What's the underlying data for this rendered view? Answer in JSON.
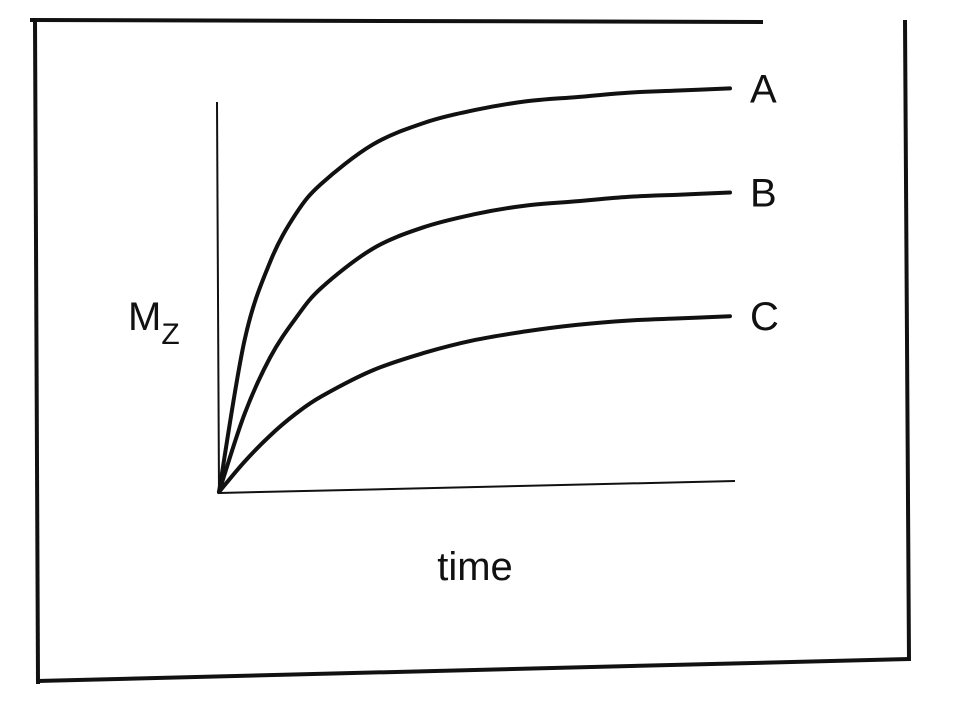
{
  "chart_data": {
    "type": "line",
    "title": "",
    "xlabel": "time",
    "ylabel": {
      "main": "M",
      "subscript": "Z"
    },
    "xlim": [
      0,
      10
    ],
    "ylim": [
      0,
      1
    ],
    "grid": false,
    "legend": "none",
    "series": [
      {
        "name": "A",
        "x": [
          0,
          0.5,
          1,
          1.5,
          2,
          3,
          4,
          5,
          6,
          7,
          8,
          9,
          10
        ],
        "values": [
          0,
          0.35,
          0.53,
          0.64,
          0.71,
          0.8,
          0.85,
          0.88,
          0.9,
          0.91,
          0.92,
          0.925,
          0.93
        ]
      },
      {
        "name": "B",
        "x": [
          0,
          0.5,
          1,
          1.5,
          2,
          3,
          4,
          5,
          6,
          7,
          8,
          9,
          10
        ],
        "values": [
          0,
          0.18,
          0.31,
          0.4,
          0.47,
          0.56,
          0.61,
          0.64,
          0.66,
          0.67,
          0.68,
          0.685,
          0.69
        ]
      },
      {
        "name": "C",
        "x": [
          0,
          0.5,
          1,
          1.5,
          2,
          3,
          4,
          5,
          6,
          7,
          8,
          9,
          10
        ],
        "values": [
          0,
          0.07,
          0.13,
          0.18,
          0.22,
          0.28,
          0.32,
          0.35,
          0.37,
          0.385,
          0.395,
          0.4,
          0.405
        ]
      }
    ]
  }
}
